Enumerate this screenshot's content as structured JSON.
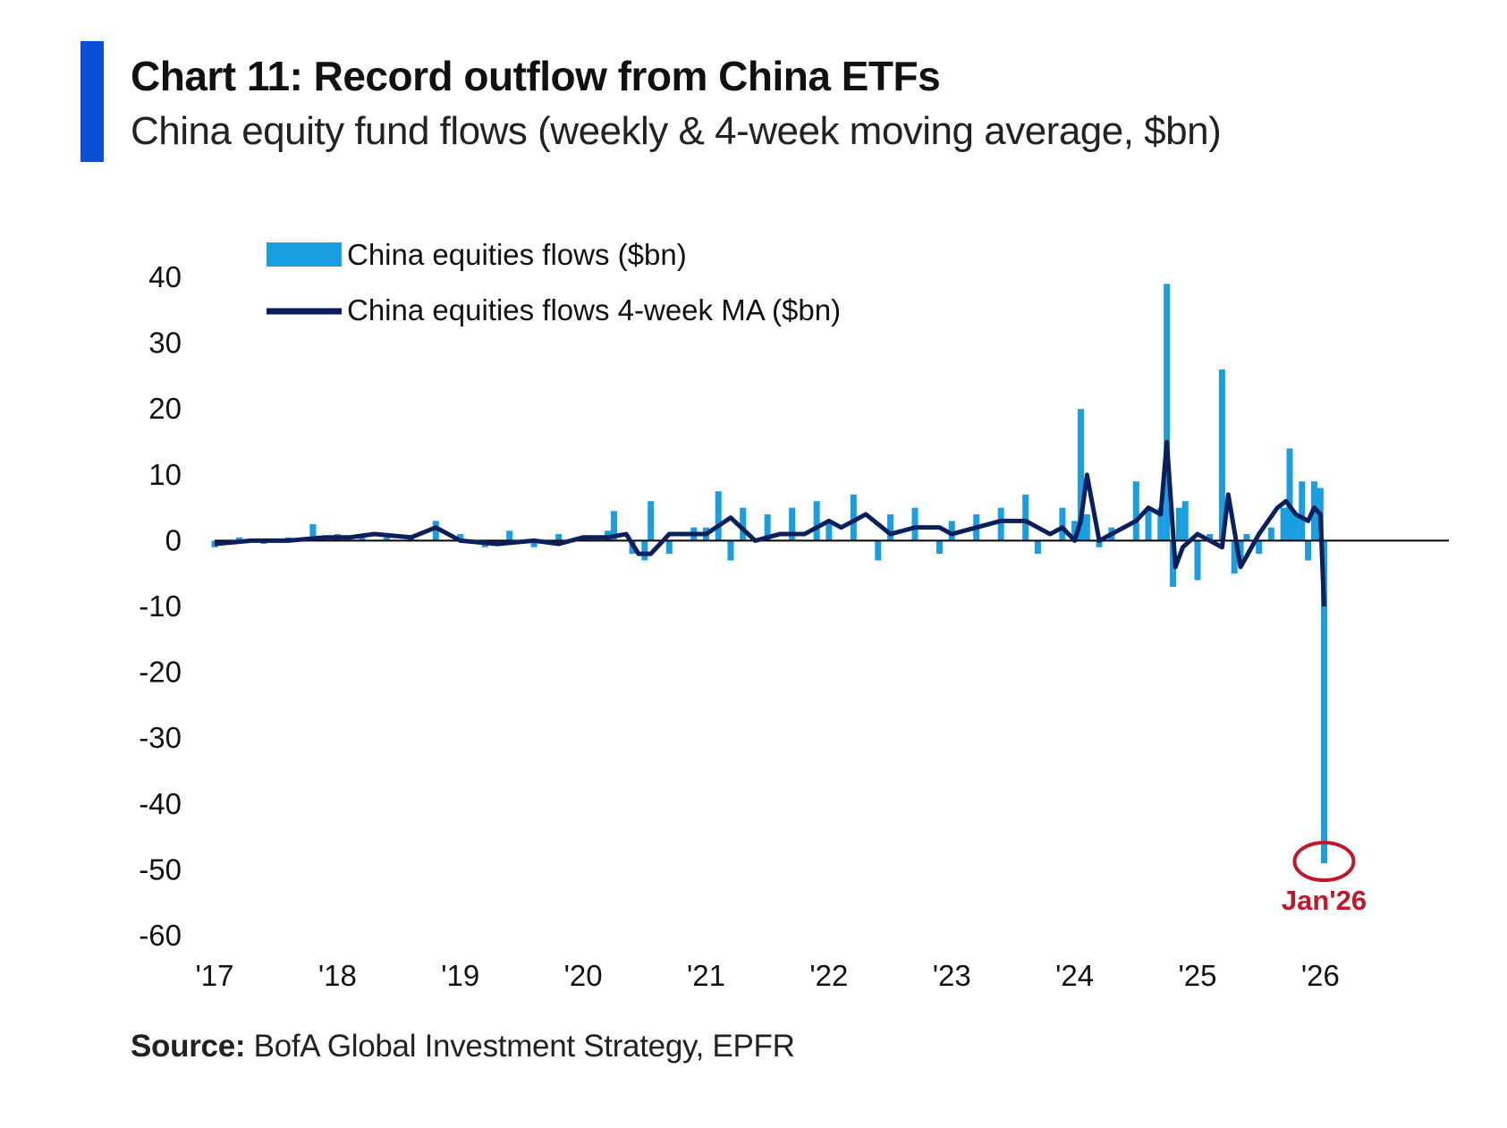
{
  "header": {
    "title": "Chart 11: Record outflow from China ETFs",
    "subtitle": "China equity fund flows (weekly & 4-week moving average, $bn)"
  },
  "footer": {
    "source_label": "Source:",
    "source_text": "BofA Global Investment Strategy, EPFR"
  },
  "colors": {
    "accent": "#0a4fd1",
    "bars": "#1a9ee2",
    "ma_line": "#0b1f5c",
    "annotation": "#c0182a",
    "zero_line": "#000000"
  },
  "chart_data": {
    "type": "bar",
    "title": "",
    "xlabel": "",
    "ylabel": "",
    "ylim": [
      -60,
      40
    ],
    "xlim": [
      2017.0,
      2026.9
    ],
    "y_ticks": [
      "40",
      "30",
      "20",
      "10",
      "0",
      "-10",
      "-20",
      "-30",
      "-40",
      "-50",
      "-60"
    ],
    "x_tick_labels": [
      "'17",
      "'18",
      "'19",
      "'20",
      "'21",
      "'22",
      "'23",
      "'24",
      "'25",
      "'26"
    ],
    "x_tick_years": [
      2017,
      2018,
      2019,
      2020,
      2021,
      2022,
      2023,
      2024,
      2025,
      2026
    ],
    "grid": false,
    "legend_position": "top-left",
    "series": [
      {
        "name": "China equities flows ($bn)",
        "kind": "bar",
        "x": [
          2017.0,
          2017.2,
          2017.4,
          2017.6,
          2017.8,
          2018.0,
          2018.2,
          2018.4,
          2018.6,
          2018.8,
          2019.0,
          2019.2,
          2019.4,
          2019.6,
          2019.8,
          2020.0,
          2020.2,
          2020.25,
          2020.4,
          2020.5,
          2020.55,
          2020.7,
          2020.9,
          2021.0,
          2021.1,
          2021.2,
          2021.3,
          2021.5,
          2021.7,
          2021.9,
          2022.0,
          2022.2,
          2022.4,
          2022.5,
          2022.7,
          2022.9,
          2023.0,
          2023.2,
          2023.4,
          2023.6,
          2023.7,
          2023.9,
          2024.0,
          2024.05,
          2024.1,
          2024.2,
          2024.3,
          2024.5,
          2024.6,
          2024.7,
          2024.75,
          2024.8,
          2024.85,
          2024.9,
          2025.0,
          2025.1,
          2025.2,
          2025.3,
          2025.35,
          2025.4,
          2025.5,
          2025.6,
          2025.7,
          2025.75,
          2025.8,
          2025.85,
          2025.9,
          2025.95,
          2026.0,
          2026.03
        ],
        "values": [
          -1,
          0.5,
          -0.5,
          0.5,
          2.5,
          1,
          1,
          0.5,
          0.5,
          3,
          1,
          -1,
          1.5,
          -1,
          1,
          0.5,
          1.5,
          4.5,
          -2,
          -3,
          6,
          -2,
          2,
          2,
          7.5,
          -3,
          5,
          4,
          5,
          6,
          3,
          7,
          -3,
          4,
          5,
          -2,
          3,
          4,
          5,
          7,
          -2,
          5,
          3,
          20,
          4,
          -1,
          2,
          9,
          5,
          5,
          39,
          -7,
          5,
          6,
          -6,
          1,
          26,
          -5,
          -3,
          1,
          -2,
          2,
          5,
          14,
          4,
          9,
          -3,
          9,
          8,
          -49
        ]
      },
      {
        "name": "China equities flows 4-week MA ($bn)",
        "kind": "line",
        "x": [
          2017.0,
          2017.3,
          2017.6,
          2017.9,
          2018.1,
          2018.3,
          2018.6,
          2018.8,
          2019.0,
          2019.3,
          2019.6,
          2019.8,
          2020.0,
          2020.2,
          2020.35,
          2020.45,
          2020.55,
          2020.7,
          2020.9,
          2021.0,
          2021.2,
          2021.4,
          2021.6,
          2021.8,
          2022.0,
          2022.1,
          2022.3,
          2022.5,
          2022.7,
          2022.9,
          2023.0,
          2023.2,
          2023.4,
          2023.6,
          2023.8,
          2023.9,
          2024.0,
          2024.05,
          2024.1,
          2024.2,
          2024.3,
          2024.5,
          2024.6,
          2024.7,
          2024.75,
          2024.82,
          2024.88,
          2025.0,
          2025.1,
          2025.2,
          2025.25,
          2025.35,
          2025.5,
          2025.65,
          2025.72,
          2025.8,
          2025.9,
          2025.95,
          2026.0,
          2026.03
        ],
        "values": [
          -0.5,
          0,
          0,
          0.5,
          0.5,
          1,
          0.5,
          2,
          0,
          -0.5,
          0,
          -0.5,
          0.5,
          0.5,
          1,
          -2,
          -2,
          1,
          1,
          1,
          3.5,
          0,
          1,
          1,
          3,
          2,
          4,
          1,
          2,
          2,
          1,
          2,
          3,
          3,
          1,
          2,
          0,
          3,
          10,
          0,
          1,
          3,
          5,
          4,
          15,
          -4,
          -1,
          1,
          0,
          -1,
          7,
          -4,
          1,
          5,
          6,
          4,
          3,
          5,
          4,
          -10
        ]
      }
    ],
    "annotation": {
      "label": "Jan'26",
      "x": 2026.03,
      "y": -49
    }
  }
}
